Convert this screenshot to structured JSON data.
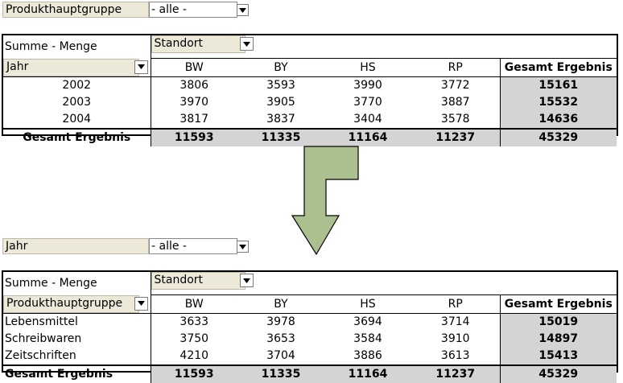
{
  "top": {
    "page_field": {
      "label": "Produkthauptgruppe",
      "value": "- alle -"
    },
    "data_label": "Summe - Menge",
    "col_field": "Standort",
    "row_field": "Jahr",
    "columns": [
      "BW",
      "BY",
      "HS",
      "RP",
      "Gesamt Ergebnis"
    ],
    "rows": [
      {
        "label": "2002",
        "values": [
          "3806",
          "3593",
          "3990",
          "3772"
        ],
        "total": "15161"
      },
      {
        "label": "2003",
        "values": [
          "3970",
          "3905",
          "3770",
          "3887"
        ],
        "total": "15532"
      },
      {
        "label": "2004",
        "values": [
          "3817",
          "3837",
          "3404",
          "3578"
        ],
        "total": "14636"
      }
    ],
    "total_row": {
      "label": "Gesamt Ergebnis",
      "values": [
        "11593",
        "11335",
        "11164",
        "11237"
      ],
      "total": "45329"
    }
  },
  "bottom": {
    "page_field": {
      "label": "Jahr",
      "value": "- alle -"
    },
    "data_label": "Summe - Menge",
    "col_field": "Standort",
    "row_field": "Produkthauptgruppe",
    "columns": [
      "BW",
      "BY",
      "HS",
      "RP",
      "Gesamt Ergebnis"
    ],
    "rows": [
      {
        "label": "Lebensmittel",
        "values": [
          "3633",
          "3978",
          "3694",
          "3714"
        ],
        "total": "15019"
      },
      {
        "label": "Schreibwaren",
        "values": [
          "3750",
          "3653",
          "3584",
          "3910"
        ],
        "total": "14897"
      },
      {
        "label": "Zeitschriften",
        "values": [
          "4210",
          "3704",
          "3886",
          "3613"
        ],
        "total": "15413"
      }
    ],
    "total_row": {
      "label": "Gesamt Ergebnis",
      "values": [
        "11593",
        "11335",
        "11164",
        "11237"
      ],
      "total": "45329"
    }
  },
  "arrow": {
    "icon": "down-arrow-icon",
    "color": "#abbf8f",
    "stroke": "#000000"
  }
}
